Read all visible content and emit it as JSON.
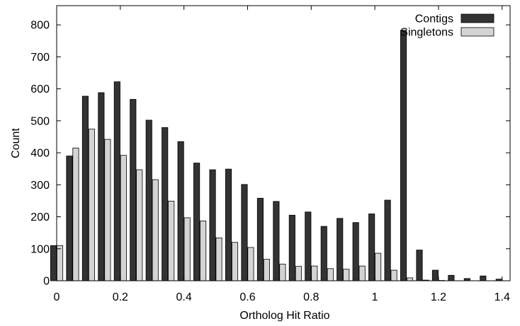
{
  "chart_data": {
    "type": "bar",
    "xlabel": "Ortholog Hit Ratio",
    "ylabel": "Count",
    "xlim": [
      0,
      1.425
    ],
    "ylim": [
      0,
      860
    ],
    "xticks": [
      {
        "value": 0,
        "label": "0"
      },
      {
        "value": 0.2,
        "label": "0.2"
      },
      {
        "value": 0.4,
        "label": "0.4"
      },
      {
        "value": 0.6,
        "label": "0.6"
      },
      {
        "value": 0.8,
        "label": "0.8"
      },
      {
        "value": 1.0,
        "label": "1"
      },
      {
        "value": 1.2,
        "label": "1.2"
      },
      {
        "value": 1.4,
        "label": "1.4"
      }
    ],
    "yticks": [
      {
        "value": 0,
        "label": "0"
      },
      {
        "value": 100,
        "label": "100"
      },
      {
        "value": 200,
        "label": "200"
      },
      {
        "value": 300,
        "label": "300"
      },
      {
        "value": 400,
        "label": "400"
      },
      {
        "value": 500,
        "label": "500"
      },
      {
        "value": 600,
        "label": "600"
      },
      {
        "value": 700,
        "label": "700"
      },
      {
        "value": 800,
        "label": "800"
      }
    ],
    "grid": false,
    "legend_position": "top-right",
    "x": [
      0.0,
      0.05,
      0.1,
      0.15,
      0.2,
      0.25,
      0.3,
      0.35,
      0.4,
      0.45,
      0.5,
      0.55,
      0.6,
      0.65,
      0.7,
      0.75,
      0.8,
      0.85,
      0.9,
      0.95,
      1.0,
      1.05,
      1.1,
      1.15,
      1.2,
      1.25,
      1.3,
      1.35,
      1.4
    ],
    "series": [
      {
        "name": "Contigs",
        "color": "#333333",
        "values": [
          110,
          390,
          577,
          588,
          622,
          567,
          502,
          479,
          435,
          368,
          347,
          349,
          301,
          258,
          248,
          205,
          215,
          170,
          195,
          182,
          209,
          252,
          783,
          96,
          33,
          17,
          7,
          15,
          5
        ]
      },
      {
        "name": "Singletons",
        "color": "#d4d4d4",
        "values": [
          110,
          415,
          474,
          442,
          392,
          347,
          316,
          249,
          197,
          187,
          134,
          120,
          104,
          67,
          52,
          45,
          46,
          38,
          36,
          46,
          86,
          33,
          9,
          2,
          1,
          0,
          0,
          0,
          0
        ]
      }
    ]
  }
}
